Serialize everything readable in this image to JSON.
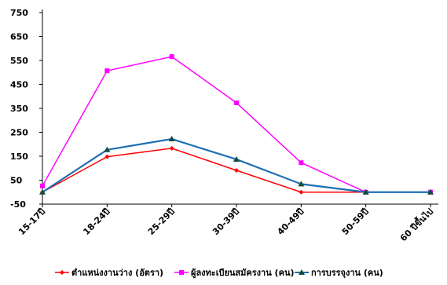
{
  "chart_data": {
    "type": "line",
    "title": "",
    "xlabel": "",
    "ylabel": "",
    "ylim": [
      -50,
      750
    ],
    "y_ticks": [
      -50,
      50,
      150,
      250,
      350,
      450,
      550,
      650,
      750
    ],
    "y_tick_labels": [
      "-50",
      "50",
      "150",
      "250",
      "350",
      "450",
      "550",
      "650",
      "750"
    ],
    "categories": [
      "15-17ปี",
      "18-24ปี",
      "25-29ปี",
      "30-39ปี",
      "40-49ปี",
      "50-59ปี",
      "60 ปีขึ้นไป"
    ],
    "grid": false,
    "legend_position": "bottom",
    "series": [
      {
        "name": "ตำแหน่งงานว่าง (อัตรา)",
        "color": "#ff0000",
        "marker": "diamond",
        "values": [
          0,
          148,
          183,
          91,
          0,
          0,
          0
        ]
      },
      {
        "name": "ผู้ลงทะเบียนสมัครงาน (คน)",
        "color": "#ff00ff",
        "marker": "square",
        "values": [
          26,
          507,
          566,
          373,
          123,
          0,
          0
        ]
      },
      {
        "name": "การบรรจุงาน (คน)",
        "color": "#1f6fb4",
        "marker": "triangle",
        "values": [
          0,
          177,
          222,
          137,
          34,
          0,
          0
        ]
      }
    ]
  }
}
